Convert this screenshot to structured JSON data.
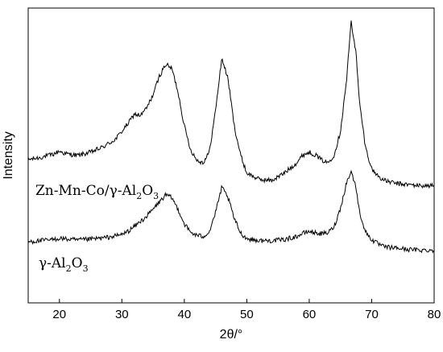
{
  "chart_data": {
    "type": "line",
    "title": "",
    "xlabel": "2θ/°",
    "ylabel": "Intensity",
    "xlim": [
      15,
      80
    ],
    "xticks": [
      20,
      30,
      40,
      50,
      60,
      70,
      80
    ],
    "y_ticks_shown": false,
    "grid": false,
    "legend": "inline labels",
    "line_color": "#000000",
    "series": [
      {
        "name": "Zn-Mn-Co/γ-Al2O3",
        "label_parts": {
          "main": "Zn-Mn-Co/γ-Al",
          "sub1": "2",
          "mid": "O",
          "sub2": "3"
        },
        "x": [
          15,
          17,
          19,
          20,
          21,
          23,
          25,
          27,
          29,
          30,
          31,
          32,
          33,
          34,
          35,
          36,
          37,
          38,
          39,
          40,
          41,
          42,
          43,
          44,
          45,
          46,
          47,
          48,
          49,
          50,
          52,
          54,
          56,
          58,
          59,
          60,
          61,
          62,
          63,
          64,
          65,
          66,
          66.7,
          67.5,
          68,
          69,
          70,
          71,
          72,
          74,
          76,
          78,
          80
        ],
        "y": [
          4.6,
          5.0,
          5.6,
          6.2,
          5.7,
          5.4,
          6.0,
          7.0,
          8.5,
          10.0,
          11.5,
          13.3,
          13.0,
          14.5,
          17.0,
          20.5,
          22.8,
          22.0,
          17.5,
          11.0,
          6.5,
          4.5,
          4.0,
          6.0,
          14.0,
          24.0,
          20.0,
          11.0,
          5.5,
          2.0,
          0.8,
          0.6,
          2.0,
          4.0,
          5.5,
          6.0,
          5.5,
          4.5,
          4.0,
          5.5,
          10.0,
          20.0,
          31.0,
          25.0,
          16.0,
          7.0,
          2.8,
          1.5,
          0.6,
          0.0,
          -0.2,
          -0.4,
          -0.4
        ]
      },
      {
        "name": "γ-Al2O3",
        "label_parts": {
          "main": "γ-Al",
          "sub1": "2",
          "mid": "O",
          "sub2": "3"
        },
        "x": [
          15,
          17,
          19,
          20,
          21,
          23,
          25,
          27,
          29,
          30,
          31,
          32,
          33,
          34,
          35,
          36,
          37,
          38,
          39,
          40,
          41,
          42,
          43,
          44,
          45,
          46,
          47,
          48,
          49,
          50,
          52,
          54,
          56,
          58,
          59,
          60,
          61,
          62,
          63,
          64,
          65,
          66,
          66.7,
          67.5,
          68,
          69,
          70,
          71,
          72,
          74,
          76,
          78,
          80
        ],
        "y": [
          0.6,
          0.8,
          1.0,
          1.3,
          1.1,
          0.9,
          1.1,
          1.3,
          1.7,
          2.0,
          2.6,
          3.5,
          4.5,
          5.5,
          6.8,
          8.2,
          9.5,
          9.0,
          6.8,
          4.0,
          2.4,
          1.8,
          1.6,
          2.5,
          6.2,
          11.0,
          9.0,
          5.0,
          2.3,
          1.2,
          0.8,
          0.8,
          1.0,
          1.6,
          2.2,
          2.6,
          2.3,
          2.1,
          2.3,
          3.5,
          7.0,
          12.0,
          14.0,
          11.0,
          6.5,
          2.5,
          1.0,
          0.2,
          -0.4,
          -0.6,
          -0.9,
          -1.0,
          -1.0
        ]
      }
    ]
  }
}
